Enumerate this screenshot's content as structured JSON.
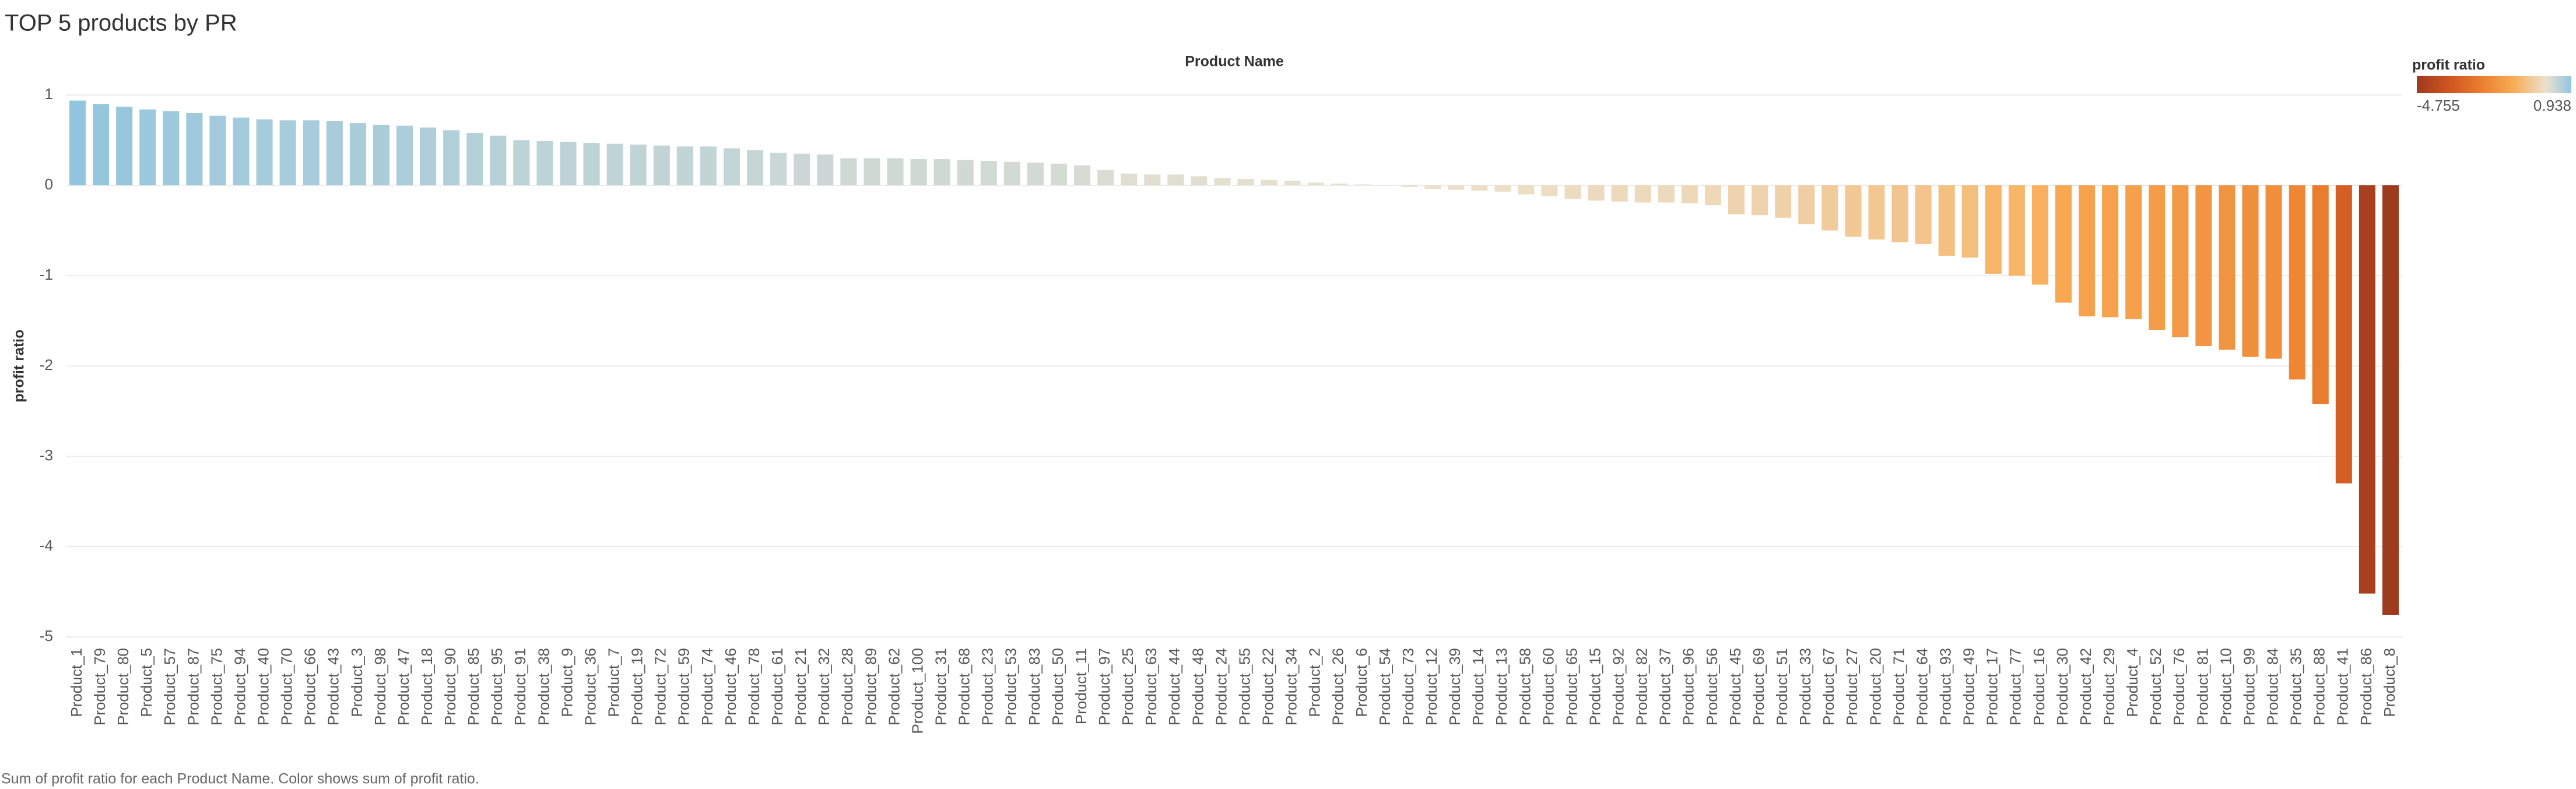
{
  "chart_data": {
    "type": "bar",
    "title": "TOP 5 products by PR",
    "x_header": "Product Name",
    "y_label": "profit ratio",
    "footer": "Sum of profit ratio for each Product Name.  Color shows sum of profit ratio.",
    "legend_title": "profit ratio",
    "color_range": [
      {
        "value": -4.755,
        "label": "-4.755"
      },
      {
        "value": 0.938,
        "label": "0.938"
      }
    ],
    "color_center": 0,
    "colors_low": [
      "#9e3a1e",
      "#cf5520",
      "#ea7e2f",
      "#f9ac55",
      "#ebe2cf"
    ],
    "colors_high": [
      "#ebe2cf",
      "#92c5de"
    ],
    "grid": true,
    "ylim": [
      -5,
      1
    ],
    "yticks": [
      1,
      0,
      -1,
      -2,
      -3,
      -4,
      -5
    ],
    "categories": [
      "Product_1",
      "Product_79",
      "Product_80",
      "Product_5",
      "Product_57",
      "Product_87",
      "Product_75",
      "Product_94",
      "Product_40",
      "Product_70",
      "Product_66",
      "Product_43",
      "Product_3",
      "Product_98",
      "Product_47",
      "Product_18",
      "Product_90",
      "Product_85",
      "Product_95",
      "Product_91",
      "Product_38",
      "Product_9",
      "Product_36",
      "Product_7",
      "Product_19",
      "Product_72",
      "Product_59",
      "Product_74",
      "Product_46",
      "Product_78",
      "Product_61",
      "Product_21",
      "Product_32",
      "Product_28",
      "Product_89",
      "Product_62",
      "Product_100",
      "Product_31",
      "Product_68",
      "Product_23",
      "Product_53",
      "Product_83",
      "Product_50",
      "Product_11",
      "Product_97",
      "Product_25",
      "Product_63",
      "Product_44",
      "Product_48",
      "Product_24",
      "Product_55",
      "Product_22",
      "Product_34",
      "Product_2",
      "Product_26",
      "Product_6",
      "Product_54",
      "Product_73",
      "Product_12",
      "Product_39",
      "Product_14",
      "Product_13",
      "Product_58",
      "Product_60",
      "Product_65",
      "Product_15",
      "Product_92",
      "Product_82",
      "Product_37",
      "Product_96",
      "Product_56",
      "Product_45",
      "Product_69",
      "Product_51",
      "Product_33",
      "Product_67",
      "Product_27",
      "Product_20",
      "Product_71",
      "Product_64",
      "Product_93",
      "Product_49",
      "Product_17",
      "Product_77",
      "Product_16",
      "Product_30",
      "Product_42",
      "Product_29",
      "Product_4",
      "Product_52",
      "Product_76",
      "Product_81",
      "Product_10",
      "Product_99",
      "Product_84",
      "Product_35",
      "Product_88",
      "Product_41",
      "Product_86",
      "Product_8"
    ],
    "values": [
      0.938,
      0.9,
      0.87,
      0.84,
      0.82,
      0.8,
      0.77,
      0.75,
      0.73,
      0.72,
      0.72,
      0.71,
      0.69,
      0.67,
      0.66,
      0.64,
      0.61,
      0.58,
      0.55,
      0.5,
      0.49,
      0.48,
      0.47,
      0.46,
      0.45,
      0.44,
      0.43,
      0.43,
      0.41,
      0.39,
      0.36,
      0.35,
      0.34,
      0.3,
      0.3,
      0.3,
      0.29,
      0.29,
      0.28,
      0.27,
      0.26,
      0.25,
      0.24,
      0.22,
      0.17,
      0.13,
      0.12,
      0.12,
      0.1,
      0.08,
      0.07,
      0.06,
      0.05,
      0.03,
      0.02,
      0.01,
      0.005,
      -0.02,
      -0.04,
      -0.05,
      -0.06,
      -0.07,
      -0.1,
      -0.12,
      -0.15,
      -0.17,
      -0.18,
      -0.19,
      -0.19,
      -0.2,
      -0.22,
      -0.32,
      -0.33,
      -0.36,
      -0.43,
      -0.5,
      -0.57,
      -0.6,
      -0.63,
      -0.65,
      -0.78,
      -0.8,
      -0.98,
      -1.0,
      -1.1,
      -1.3,
      -1.45,
      -1.46,
      -1.48,
      -1.6,
      -1.68,
      -1.78,
      -1.82,
      -1.9,
      -1.92,
      -2.15,
      -2.42,
      -3.3,
      -4.52,
      -4.755
    ]
  }
}
